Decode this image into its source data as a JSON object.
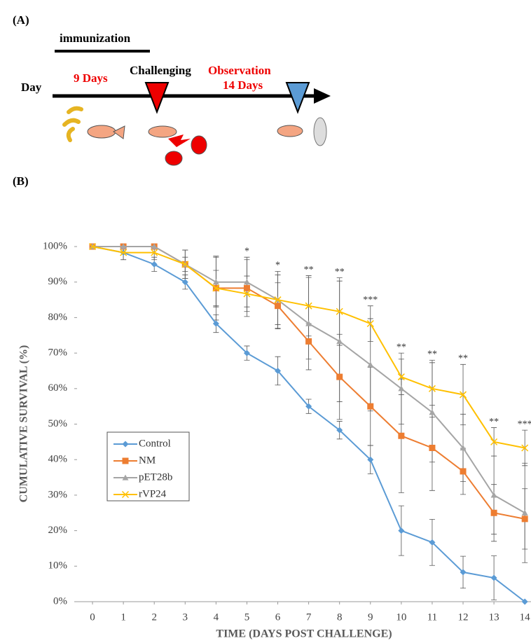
{
  "diagram": {
    "panel_label": "(A)",
    "immunization": "immunization",
    "day": "Day",
    "nine_days": "9 Days",
    "challenging": "Challenging",
    "observation": "Observation",
    "fourteen_days": "14 Days"
  },
  "chart_panel_label": "(B)",
  "chart_data": {
    "type": "line",
    "y_label": "CUMULATIVE SURVIVAL (%)",
    "x_label": "TIME (DAYS POST CHALLENGE)",
    "x": [
      0,
      1,
      2,
      3,
      4,
      5,
      6,
      7,
      8,
      9,
      10,
      11,
      12,
      13,
      14
    ],
    "xlim": [
      -0.5,
      14.2
    ],
    "xticks": [
      0,
      1,
      2,
      3,
      4,
      5,
      6,
      7,
      8,
      9,
      10,
      11,
      12,
      13,
      14
    ],
    "ylim": [
      0,
      100
    ],
    "yticks": [
      {
        "value": 0,
        "label": "0%"
      },
      {
        "value": 10,
        "label": "10%"
      },
      {
        "value": 20,
        "label": "20%"
      },
      {
        "value": 30,
        "label": "30%"
      },
      {
        "value": 40,
        "label": "40%"
      },
      {
        "value": 50,
        "label": "50%"
      },
      {
        "value": 60,
        "label": "60%"
      },
      {
        "value": 70,
        "label": "70%"
      },
      {
        "value": 80,
        "label": "80%"
      },
      {
        "value": 90,
        "label": "90%"
      },
      {
        "value": 100,
        "label": "100%"
      }
    ],
    "legend": "lower left",
    "series": [
      {
        "name": "Control",
        "color": "#5b9bd5",
        "marker": "diamond",
        "values": [
          100,
          98.3,
          95,
          90,
          78.3,
          70,
          65,
          55,
          48.3,
          40,
          20,
          16.7,
          8.3,
          6.7,
          0
        ],
        "errors": [
          0,
          2,
          2,
          2,
          2.5,
          2,
          4,
          2,
          2.5,
          4,
          7,
          6.5,
          4.5,
          6.2,
          0
        ]
      },
      {
        "name": "NM",
        "color": "#ed7d31",
        "marker": "square",
        "values": [
          100,
          100,
          100,
          95,
          88.3,
          88.3,
          83.3,
          73.3,
          63.3,
          55,
          46.7,
          43.3,
          36.7,
          25,
          23.3
        ],
        "errors": [
          0,
          0,
          0,
          2,
          5,
          8,
          6.5,
          5,
          12,
          11,
          16,
          12,
          6.5,
          8,
          8.5
        ]
      },
      {
        "name": "pET28b",
        "color": "#a5a5a5",
        "marker": "triangle",
        "values": [
          100,
          100,
          100,
          95,
          90,
          90,
          85,
          78.3,
          73.3,
          66.7,
          60,
          53.3,
          43.3,
          30,
          25
        ],
        "errors": [
          0,
          0,
          0,
          4,
          7,
          7,
          7,
          13,
          17,
          13,
          10,
          14,
          9.5,
          11,
          14
        ]
      },
      {
        "name": "rVP24",
        "color": "#ffc000",
        "marker": "x",
        "values": [
          100,
          98.3,
          98.3,
          95,
          88.3,
          86.7,
          85,
          83.3,
          81.7,
          78.3,
          63.3,
          60,
          58.3,
          45,
          43.3
        ],
        "errors": [
          0,
          2,
          2,
          4,
          9,
          5,
          8,
          8.5,
          9.5,
          5,
          5,
          8,
          8.5,
          4,
          5
        ]
      }
    ],
    "annotations": [
      {
        "x": 5,
        "label": "*"
      },
      {
        "x": 6,
        "label": "*"
      },
      {
        "x": 7,
        "label": "**"
      },
      {
        "x": 8,
        "label": "**"
      },
      {
        "x": 9,
        "label": "***"
      },
      {
        "x": 10,
        "label": "**"
      },
      {
        "x": 11,
        "label": "**"
      },
      {
        "x": 12,
        "label": "**"
      },
      {
        "x": 13,
        "label": "**"
      },
      {
        "x": 14,
        "label": "***"
      }
    ]
  }
}
